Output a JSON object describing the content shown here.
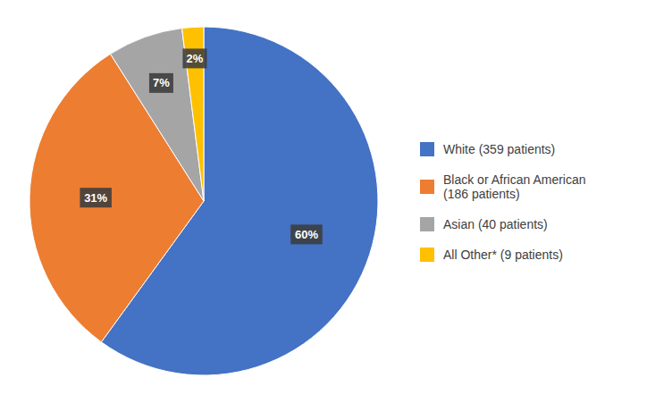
{
  "chart_data": {
    "type": "pie",
    "categories": [
      "White (359 patients)",
      "Black or African American\n(186 patients)",
      "Asian (40 patients)",
      "All Other* (9 patients)"
    ],
    "values": [
      60,
      31,
      7,
      2
    ],
    "value_labels": [
      "60%",
      "31%",
      "7%",
      "2%"
    ],
    "colors": [
      "#4472C4",
      "#ED7D31",
      "#A5A5A5",
      "#FFC000"
    ],
    "data_labels": true,
    "legend": "right"
  }
}
